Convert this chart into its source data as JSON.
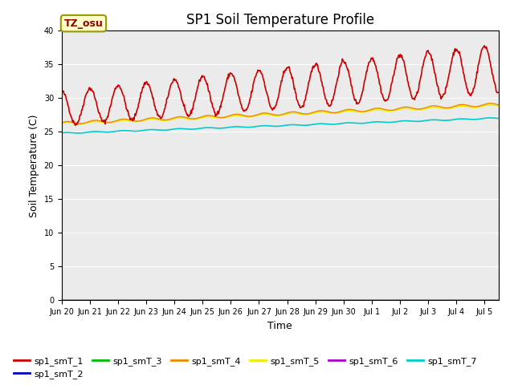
{
  "title": "SP1 Soil Temperature Profile",
  "xlabel": "Time",
  "ylabel": "Soil Temperature (C)",
  "tz_label": "TZ_osu",
  "ylim": [
    0,
    40
  ],
  "yticks": [
    0,
    5,
    10,
    15,
    20,
    25,
    30,
    35,
    40
  ],
  "n_days": 15.5,
  "x_tick_labels": [
    "Jun 20",
    "Jun 21",
    "Jun 22",
    "Jun 23",
    "Jun 24",
    "Jun 25",
    "Jun 26",
    "Jun 27",
    "Jun 28",
    "Jun 29",
    "Jun 30",
    "Jul 1",
    "Jul 2",
    "Jul 3",
    "Jul 4",
    "Jul 5"
  ],
  "series_colors": {
    "sp1_smT_1": "#cc0000",
    "sp1_smT_2": "#0000bb",
    "sp1_smT_3": "#00bb00",
    "sp1_smT_4": "#ee8800",
    "sp1_smT_5": "#eeee00",
    "sp1_smT_6": "#aa00cc",
    "sp1_smT_7": "#00cccc"
  },
  "background_color": "#ebebeb",
  "grid_color": "#ffffff",
  "title_fontsize": 12,
  "label_fontsize": 9,
  "tick_fontsize": 7,
  "figwidth": 6.4,
  "figheight": 4.8,
  "dpi": 100
}
